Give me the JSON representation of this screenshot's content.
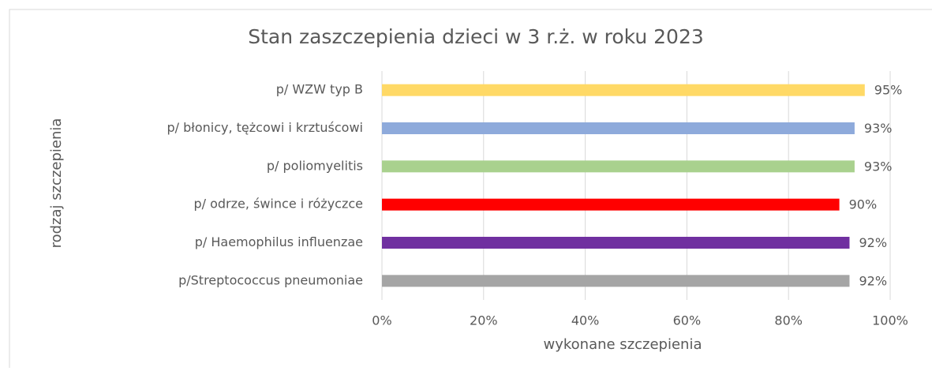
{
  "chart_data": {
    "type": "bar",
    "orientation": "horizontal",
    "title": "Stan zaszczepienia dzieci w 3 r.ż. w roku 2023",
    "xlabel": "wykonane szczepienia",
    "ylabel": "rodzaj szczepienia",
    "categories": [
      "p/ WZW typ B",
      "p/ błonicy, tężcowi i krztuścowi",
      "p/ poliomyelitis",
      "p/ odrze, śwince i różyczce",
      "p/ Haemophilus influenzae",
      "p/Streptococcus pneumoniae"
    ],
    "values": [
      95,
      93,
      93,
      90,
      92,
      92
    ],
    "value_labels": [
      "95%",
      "93%",
      "93%",
      "90%",
      "92%",
      "92%"
    ],
    "colors": [
      "#ffd966",
      "#8eaadb",
      "#a9d18e",
      "#ff0000",
      "#7030a0",
      "#a5a5a5"
    ],
    "xlim": [
      0,
      100
    ],
    "xticks": [
      {
        "value": 0,
        "label": "0%"
      },
      {
        "value": 20,
        "label": "20%"
      },
      {
        "value": 40,
        "label": "40%"
      },
      {
        "value": 60,
        "label": "60%"
      },
      {
        "value": 80,
        "label": "80%"
      },
      {
        "value": 100,
        "label": "100%"
      }
    ],
    "grid": true
  }
}
